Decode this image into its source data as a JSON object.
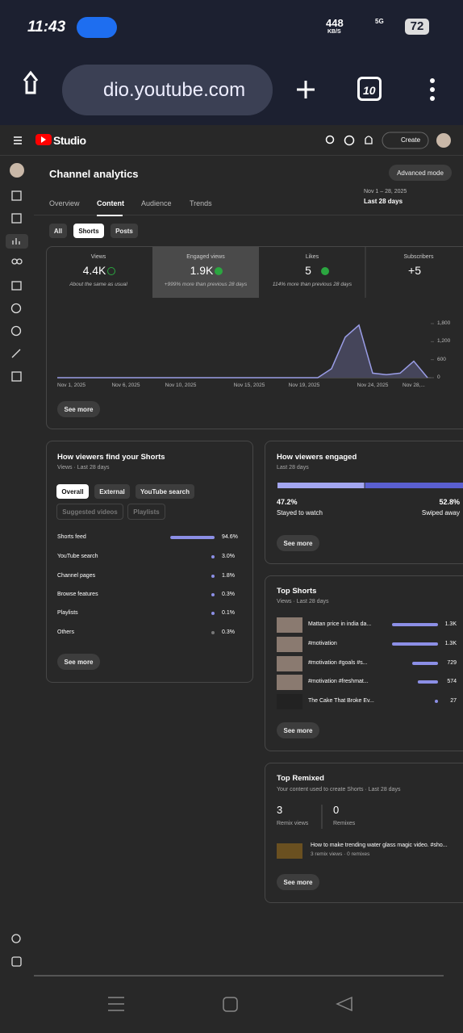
{
  "status_bar": {
    "time": "11:43",
    "speed": "448",
    "speed_unit": "KB/S",
    "network": "5G",
    "battery": "72"
  },
  "browser": {
    "url": "dio.youtube.com",
    "tabs": "10"
  },
  "header": {
    "app": "Studio",
    "create": "Create"
  },
  "page": {
    "title": "Channel analytics",
    "advanced": "Advanced mode",
    "tabs": [
      "Overview",
      "Content",
      "Audience",
      "Trends"
    ],
    "date_range": "Nov 1 – 28, 2025",
    "period": "Last 28 days",
    "filters": [
      "All",
      "Shorts",
      "Posts"
    ]
  },
  "metrics": [
    {
      "label": "Views",
      "value": "4.4K",
      "note": "About the same as usual"
    },
    {
      "label": "Engaged views",
      "value": "1.9K",
      "note": "+999% more than previous 28 days"
    },
    {
      "label": "Likes",
      "value": "5",
      "note": "114% more than previous 28 days"
    },
    {
      "label": "Subscribers",
      "value": "+5"
    }
  ],
  "chart_data": {
    "type": "area",
    "categories": [
      "Nov 1, 2025",
      null,
      null,
      null,
      null,
      "Nov 6, 2025",
      null,
      null,
      null,
      "Nov 10, 2025",
      null,
      null,
      null,
      null,
      "Nov 15, 2025",
      null,
      null,
      null,
      "Nov 19, 2025",
      null,
      null,
      null,
      null,
      "Nov 24, 2025",
      null,
      null,
      null,
      "Nov 28,..."
    ],
    "values": [
      0,
      0,
      0,
      0,
      0,
      0,
      0,
      0,
      0,
      0,
      0,
      0,
      0,
      0,
      0,
      0,
      0,
      0,
      0,
      0,
      300,
      1350,
      1750,
      150,
      100,
      150,
      550,
      0
    ],
    "ylim": [
      0,
      1800
    ],
    "yticks": [
      0,
      600,
      {
        "value": 1200,
        "label": "1,200"
      },
      {
        "value": 1800,
        "label": "1,800"
      }
    ],
    "color": "#9a9de6",
    "fill": "#45455a",
    "grid": false,
    "see_more": "See more"
  },
  "traffic": {
    "title": "How viewers find your Shorts",
    "subtitle": "Views · Last 28 days",
    "filters": [
      "Overall",
      "External",
      "YouTube search",
      "Suggested videos",
      "Playlists"
    ],
    "sources": [
      "Shorts feed",
      "YouTube search",
      "Channel pages",
      "Browse features",
      "Playlists",
      "Others"
    ],
    "values": [
      94.6,
      3.0,
      1.8,
      0.3,
      0.1,
      0.3
    ],
    "value_labels": [
      "94.6%",
      "3.0%",
      "1.8%",
      "0.3%",
      "0.1%",
      "0.3%"
    ],
    "color": "#8c8fe6",
    "see_more": "See more"
  },
  "engagement": {
    "title": "How viewers engaged",
    "subtitle": "Last 28 days",
    "values": [
      47.2,
      52.8
    ],
    "value_labels": [
      "47.2%",
      "52.8%"
    ],
    "labels": [
      "Stayed to watch",
      "Swiped away"
    ],
    "colors": [
      "#a3a6f0",
      "#5a5fd0"
    ],
    "see_more": "See more"
  },
  "top_shorts": {
    "title": "Top Shorts",
    "subtitle": "Views · Last 28 days",
    "titles": [
      "Mattan price in india da...",
      "#motivation",
      "#motivation #goals #s...",
      "#motivation #freshmat...",
      "The Cake That Broke Ev..."
    ],
    "values": [
      1300,
      1300,
      729,
      574,
      27
    ],
    "value_labels": [
      "1.3K",
      "1.3K",
      "729",
      "574",
      "27"
    ],
    "color": "#8c8fe6",
    "see_more": "See more"
  },
  "top_remixed": {
    "title": "Top Remixed",
    "subtitle": "Your content used to create Shorts · Last 28 days",
    "stats": [
      {
        "value": "3",
        "label": "Remix views"
      },
      {
        "value": "0",
        "label": "Remixes"
      }
    ],
    "item": {
      "title": "How to make trending water glass magic video. #sho...",
      "meta": "3 remix views · 0 remixes"
    },
    "see_more": "See more"
  }
}
